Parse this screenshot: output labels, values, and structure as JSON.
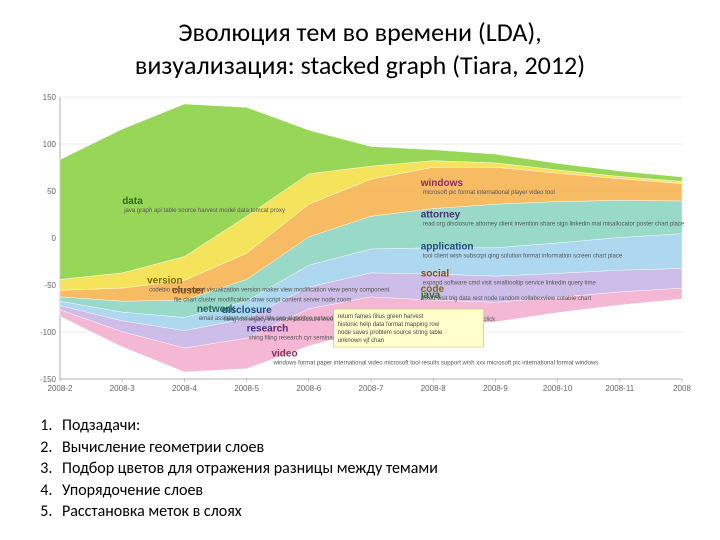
{
  "title_line1": "Эволюция тем во времени (LDA),",
  "title_line2": "визуализация: stacked graph (Tiara, 2012)",
  "chart": {
    "type": "stacked-stream",
    "background_color": "#ffffff",
    "axis_line_color": "#b0b0b0",
    "grid_color": "#d8d8d8",
    "tick_font_size": 8,
    "x_ticks": [
      "2008-2",
      "2008-3",
      "2008-4",
      "2008-5",
      "2008-6",
      "2008-7",
      "2008-8",
      "2008-9",
      "2008-10",
      "2008-11",
      "2008"
    ],
    "y_ticks": [
      "-150",
      "-100",
      "-50",
      "0",
      "50",
      "100",
      "150"
    ],
    "ylim": [
      -150,
      150
    ],
    "layers": [
      {
        "id": "green-top",
        "color": "#8fd24a",
        "keyword": "data",
        "keyword_color": "#2e6a1e",
        "minor_words": "java graph api table source harvest model data tomcat proxy",
        "values": [
          110,
          132,
          140,
          100,
          40,
          18,
          10,
          8,
          6,
          5,
          4
        ]
      },
      {
        "id": "yellow",
        "color": "#f4e24d",
        "keyword": "version",
        "keyword_color": "#7a6a10",
        "minor_words": "codebio cobra export visualization version maker view modification view penny component",
        "values": [
          10,
          14,
          22,
          34,
          28,
          12,
          6,
          4,
          3,
          2,
          2
        ]
      },
      {
        "id": "orange",
        "color": "#f6b557",
        "keyword": "cluster",
        "keyword_color": "#8a4a10",
        "minor_words": "file chart cluster modification draw script content server node zoom",
        "values": [
          6,
          12,
          18,
          24,
          30,
          34,
          38,
          34,
          26,
          20,
          16
        ]
      },
      {
        "id": "teal",
        "color": "#8fd6c3",
        "keyword": "network",
        "keyword_color": "#1e6a56",
        "minor_words": "email assistant cvs label title sep algorithm network plan point yuan proposal pita pku vjf chan",
        "values": [
          4,
          10,
          16,
          20,
          26,
          30,
          36,
          40,
          38,
          34,
          30
        ]
      },
      {
        "id": "sky",
        "color": "#a7d4ef",
        "keyword": "disclosure",
        "keyword_color": "#1e4a7a",
        "minor_words": "filing xml legacy invention disclosure invention patent report search analyst evaluation action max click",
        "values": [
          4,
          8,
          12,
          16,
          20,
          22,
          24,
          26,
          28,
          30,
          32
        ]
      },
      {
        "id": "lavender",
        "color": "#c9b7e6",
        "keyword": "research",
        "keyword_color": "#4a2e7a",
        "minor_words": "shing filing research cyr seminar company university book plan conferences",
        "values": [
          4,
          10,
          16,
          18,
          20,
          22,
          24,
          24,
          22,
          20,
          18
        ]
      },
      {
        "id": "pink",
        "color": "#f3b1d0",
        "keyword": "video",
        "keyword_color": "#8a2e5a",
        "minor_words": "windows format paper international video microsoft tool results support wish xxx microsoft pic international format windows",
        "values": [
          6,
          14,
          22,
          28,
          34,
          30,
          24,
          18,
          14,
          12,
          10
        ]
      }
    ],
    "right_labels": [
      {
        "text": "java",
        "color": "#2e6a1e",
        "y_hint": -106
      },
      {
        "text": "code",
        "sub": "fixed visit trig data rest node random collabexview cotable chart",
        "color": "#7a6a10",
        "y_hint": -96
      },
      {
        "text": "social",
        "sub": "expand software cmd visit smalltooltip service linkedin query time",
        "color": "#8a4a10",
        "y_hint": -68
      },
      {
        "text": "application",
        "sub": "tool client wish subscrpt qing solution format information screen chart place",
        "color": "#1e4a7a",
        "y_hint": -20
      },
      {
        "text": "attorney",
        "sub": "read org disclosure attorney client invention share sign linkedin mai misallocator poster chart place",
        "color": "#4a2e7a",
        "y_hint": 36
      },
      {
        "text": "windows",
        "sub": "microsoft pic format international player video tool",
        "color": "#8a2e5a",
        "y_hint": 92
      }
    ],
    "tooltip": {
      "x_hint": 0.44,
      "y_hint": -108,
      "lines": [
        "return fames filius green harvest",
        "histonic help data format mapping row",
        "node saves problem source string table",
        "unknown vjf chan"
      ]
    }
  },
  "notes": [
    "Подзадачи:",
    "Вычисление геометрии слоев",
    "Подбор цветов для отражения разницы между темами",
    "Упорядочение слоев",
    "Расстановка меток в слоях"
  ]
}
